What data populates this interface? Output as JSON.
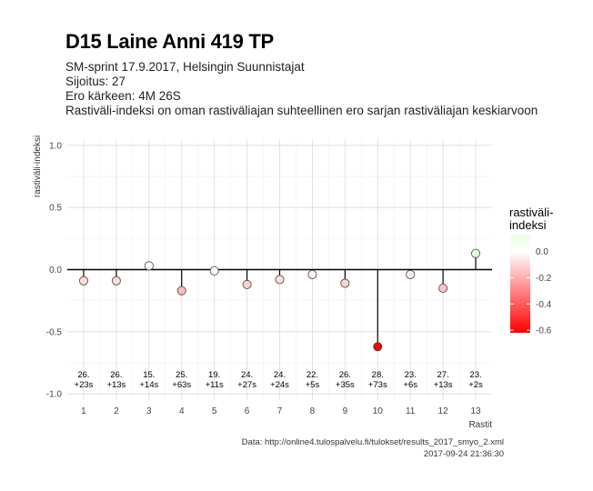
{
  "title": "D15 Laine Anni 419 TP",
  "subtitle_lines": [
    "SM-sprint 17.9.2017, Helsingin Suunnistajat",
    "Sijoitus: 27",
    "Ero kärkeen: 4M 26S",
    "Rastiväli-indeksi on oman rastiväliajan suhteellinen ero sarjan rastiväliajan keskiarvoon"
  ],
  "caption_lines": [
    "Data: http://online4.tulospalvelu.fi/tulokset/results_2017_smyo_2.xml",
    "2017-09-24 21:36:30"
  ],
  "chart_data": {
    "type": "scatter",
    "title": "D15 Laine Anni 419 TP",
    "xlabel": "Rastit",
    "ylabel": "rastiväli-indeksi",
    "x": [
      1,
      2,
      3,
      4,
      5,
      6,
      7,
      8,
      9,
      10,
      11,
      12,
      13
    ],
    "values": [
      -0.09,
      -0.09,
      0.03,
      -0.17,
      -0.01,
      -0.12,
      -0.08,
      -0.04,
      -0.11,
      -0.62,
      -0.04,
      -0.15,
      0.13
    ],
    "labels_rank": [
      "26.",
      "26.",
      "15.",
      "25.",
      "19.",
      "24.",
      "24.",
      "22.",
      "26.",
      "28.",
      "23.",
      "27.",
      "23."
    ],
    "labels_diff": [
      "+23s",
      "+13s",
      "+14s",
      "+63s",
      "+11s",
      "+27s",
      "+24s",
      "+5s",
      "+35s",
      "+73s",
      "+6s",
      "+13s",
      "+2s"
    ],
    "xlim": [
      0.5,
      13.5
    ],
    "ylim": [
      -1.05,
      1.05
    ],
    "yticks": [
      "1.0",
      "0.5",
      "0.0",
      "-0.5",
      "-1.0"
    ],
    "ytick_values": [
      1.0,
      0.5,
      0.0,
      -0.5,
      -1.0
    ],
    "xticks": [
      "1",
      "2",
      "3",
      "4",
      "5",
      "6",
      "7",
      "8",
      "9",
      "10",
      "11",
      "12",
      "13"
    ],
    "grid": true,
    "legend": {
      "title_lines": [
        "rastiväli-",
        "indeksi"
      ],
      "ticks": [
        "0.0",
        "-0.2",
        "-0.4",
        "-0.6"
      ],
      "tick_values": [
        0.0,
        -0.2,
        -0.4,
        -0.6
      ],
      "range": [
        -0.62,
        0.13
      ],
      "colors": {
        "low": "#ff0000",
        "mid": "#ffffff",
        "high": "#e8ffe0"
      },
      "placement": "right"
    }
  }
}
